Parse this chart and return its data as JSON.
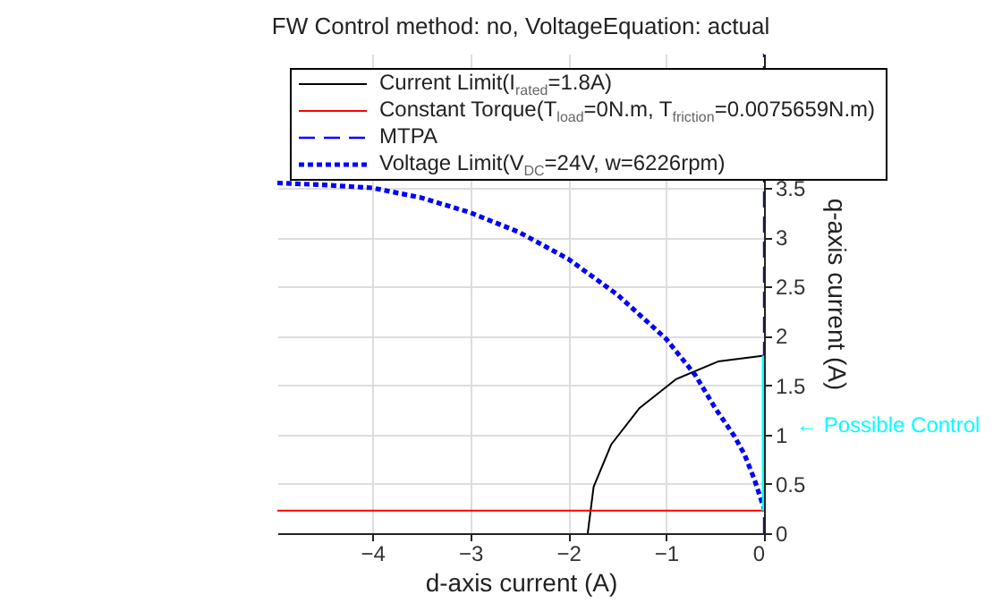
{
  "chart_data": {
    "type": "line",
    "title": "FW Control method: no, VoltageEquation: actual",
    "xlabel": "d-axis current (A)",
    "ylabel": "q-axis current (A)",
    "xlim": [
      -4.97,
      0
    ],
    "ylim": [
      0,
      4.86
    ],
    "xticks": [
      -4,
      -3,
      -2,
      -1,
      0
    ],
    "yticks": [
      0,
      0.5,
      1,
      1.5,
      2,
      2.5,
      3,
      3.5
    ],
    "grid": true,
    "legend": "top",
    "marker": "none",
    "series": [
      {
        "name": "Current Limit(I$_{rated}$=1.8A)",
        "color": "#000000",
        "line_style": "solid",
        "x": [
          -1.8,
          -1.74,
          -1.56,
          -1.27,
          -0.9,
          -0.47,
          0
        ],
        "values": [
          0,
          0.47,
          0.9,
          1.27,
          1.56,
          1.74,
          1.8
        ]
      },
      {
        "name": "Constant Torque(T$_{load}$=0N.m, T$_{friction}$=0.0075659N.m)",
        "color": "#ff0000",
        "line_style": "solid",
        "x": [
          -4.97,
          0
        ],
        "values": [
          0.23,
          0.23
        ]
      },
      {
        "name": "MTPA",
        "color": "#0000ff",
        "line_style": "dashed",
        "x": [
          0,
          0
        ],
        "values": [
          0,
          4.86
        ]
      },
      {
        "name": "Voltage Limit(V$_{DC}$=24V, w=6226rpm)",
        "color": "#0000ff",
        "line_style": "dotted",
        "x": [
          -4.97,
          -4.5,
          -4,
          -3.5,
          -3,
          -2.5,
          -2,
          -1.5,
          -1,
          -0.7,
          -0.5,
          -0.3,
          -0.2,
          -0.1,
          0
        ],
        "values": [
          3.55,
          3.53,
          3.5,
          3.4,
          3.25,
          3.05,
          2.78,
          2.42,
          1.97,
          1.6,
          1.27,
          0.98,
          0.8,
          0.55,
          0.25
        ]
      },
      {
        "color": "#00ffff",
        "line_style": "solid",
        "x": [
          0,
          0
        ],
        "values": [
          0.23,
          1.8
        ]
      }
    ],
    "annotations": [
      {
        "text": "← Possible Control",
        "x": 0,
        "y": 1.1
      }
    ]
  }
}
